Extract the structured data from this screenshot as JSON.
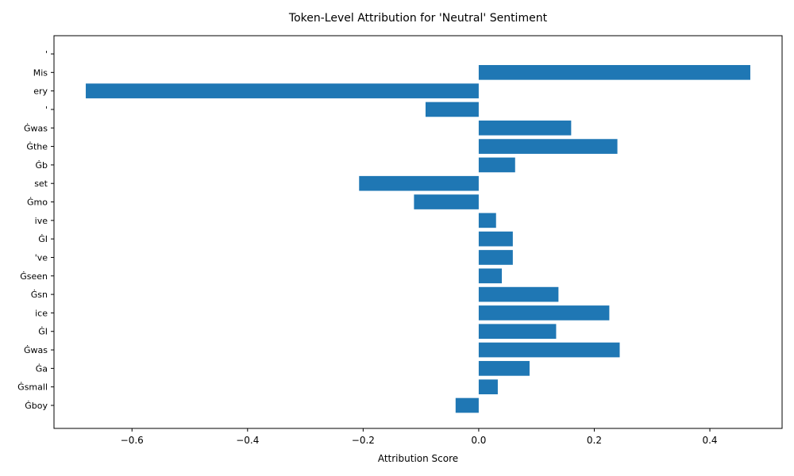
{
  "chart_data": {
    "type": "bar",
    "orientation": "horizontal",
    "title": "Token-Level Attribution for 'Neutral' Sentiment",
    "xlabel": "Attribution Score",
    "ylabel": "",
    "xlim": [
      -0.735,
      0.525
    ],
    "xticks": [
      -0.6,
      -0.4,
      -0.2,
      0.0,
      0.2,
      0.4
    ],
    "xtick_labels": [
      "−0.6",
      "−0.4",
      "−0.2",
      "0.0",
      "0.2",
      "0.4"
    ],
    "grid": false,
    "legend": "none",
    "bar_color": "#1f77b4",
    "categories": [
      "'",
      "Mis",
      "ery",
      "'",
      "Ġwas",
      "Ġthe",
      "Ġb",
      "set",
      "Ġmo",
      "ive",
      "ĠI",
      "'ve",
      "Ġseen",
      "Ġsn",
      "ice",
      "ĠI",
      "Ġwas",
      "Ġa",
      "Ġsmall",
      "Ġboy"
    ],
    "values": [
      0.0,
      0.47,
      -0.68,
      -0.092,
      0.16,
      0.24,
      0.063,
      -0.207,
      -0.112,
      0.03,
      0.059,
      0.059,
      0.04,
      0.138,
      0.226,
      0.134,
      0.244,
      0.088,
      0.033,
      -0.04
    ]
  }
}
